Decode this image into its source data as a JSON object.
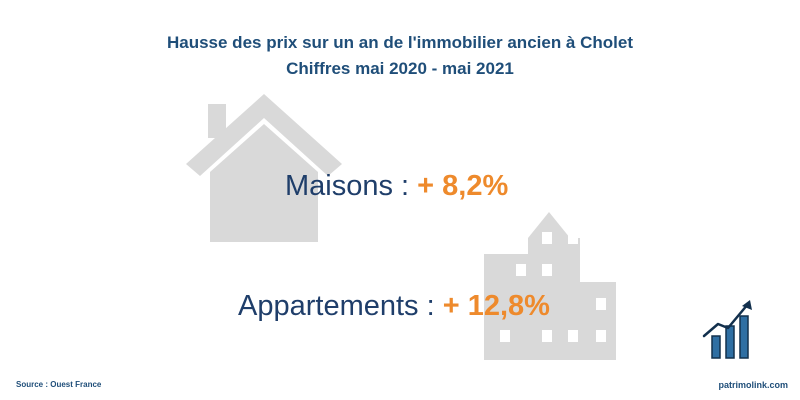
{
  "header": {
    "title_line1": "Hausse des prix sur un an de l'immobilier ancien à Cholet",
    "title_line2": "Chiffres mai 2020 - mai 2021"
  },
  "stats": {
    "maisons": {
      "label": "Maisons : ",
      "value": "+ 8,2%"
    },
    "appartements": {
      "label": "Appartements : ",
      "value": "+ 12,8%"
    }
  },
  "footer": {
    "source": "Source : Ouest France",
    "brand": "patrimolink.com"
  },
  "icons": {
    "house": "house-icon",
    "building": "building-icon",
    "chart": "growth-chart-icon"
  },
  "colors": {
    "title": "#1f4e79",
    "value": "#ee8a2c",
    "icon_gray": "#d9d9d9",
    "chart_blue": "#2f6fa3"
  }
}
